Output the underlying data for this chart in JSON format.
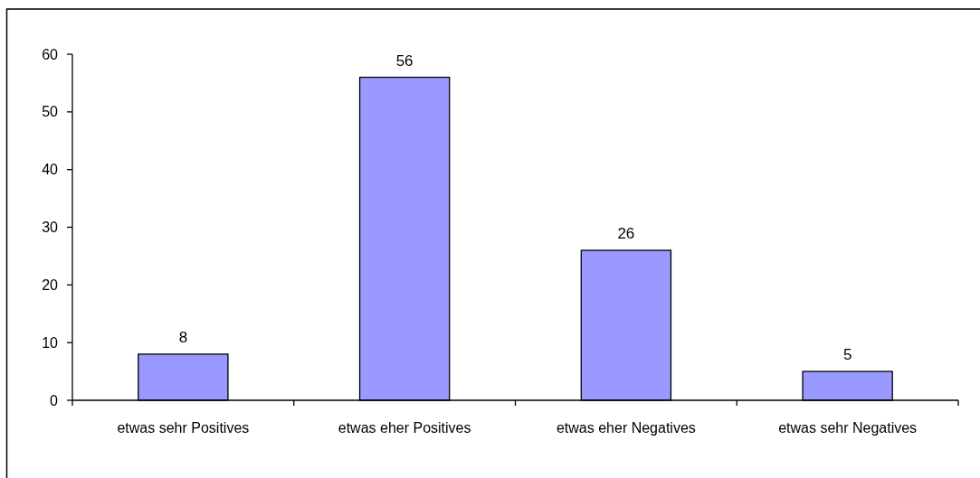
{
  "chart_data": {
    "type": "bar",
    "categories": [
      "etwas sehr Positives",
      "etwas eher Positives",
      "etwas eher Negatives",
      "etwas sehr Negatives"
    ],
    "values": [
      8,
      56,
      26,
      5
    ],
    "color": "#9999ff",
    "ylim": [
      0,
      60
    ],
    "yticks": [
      0,
      10,
      20,
      30,
      40,
      50,
      60
    ],
    "data_labels": true
  }
}
